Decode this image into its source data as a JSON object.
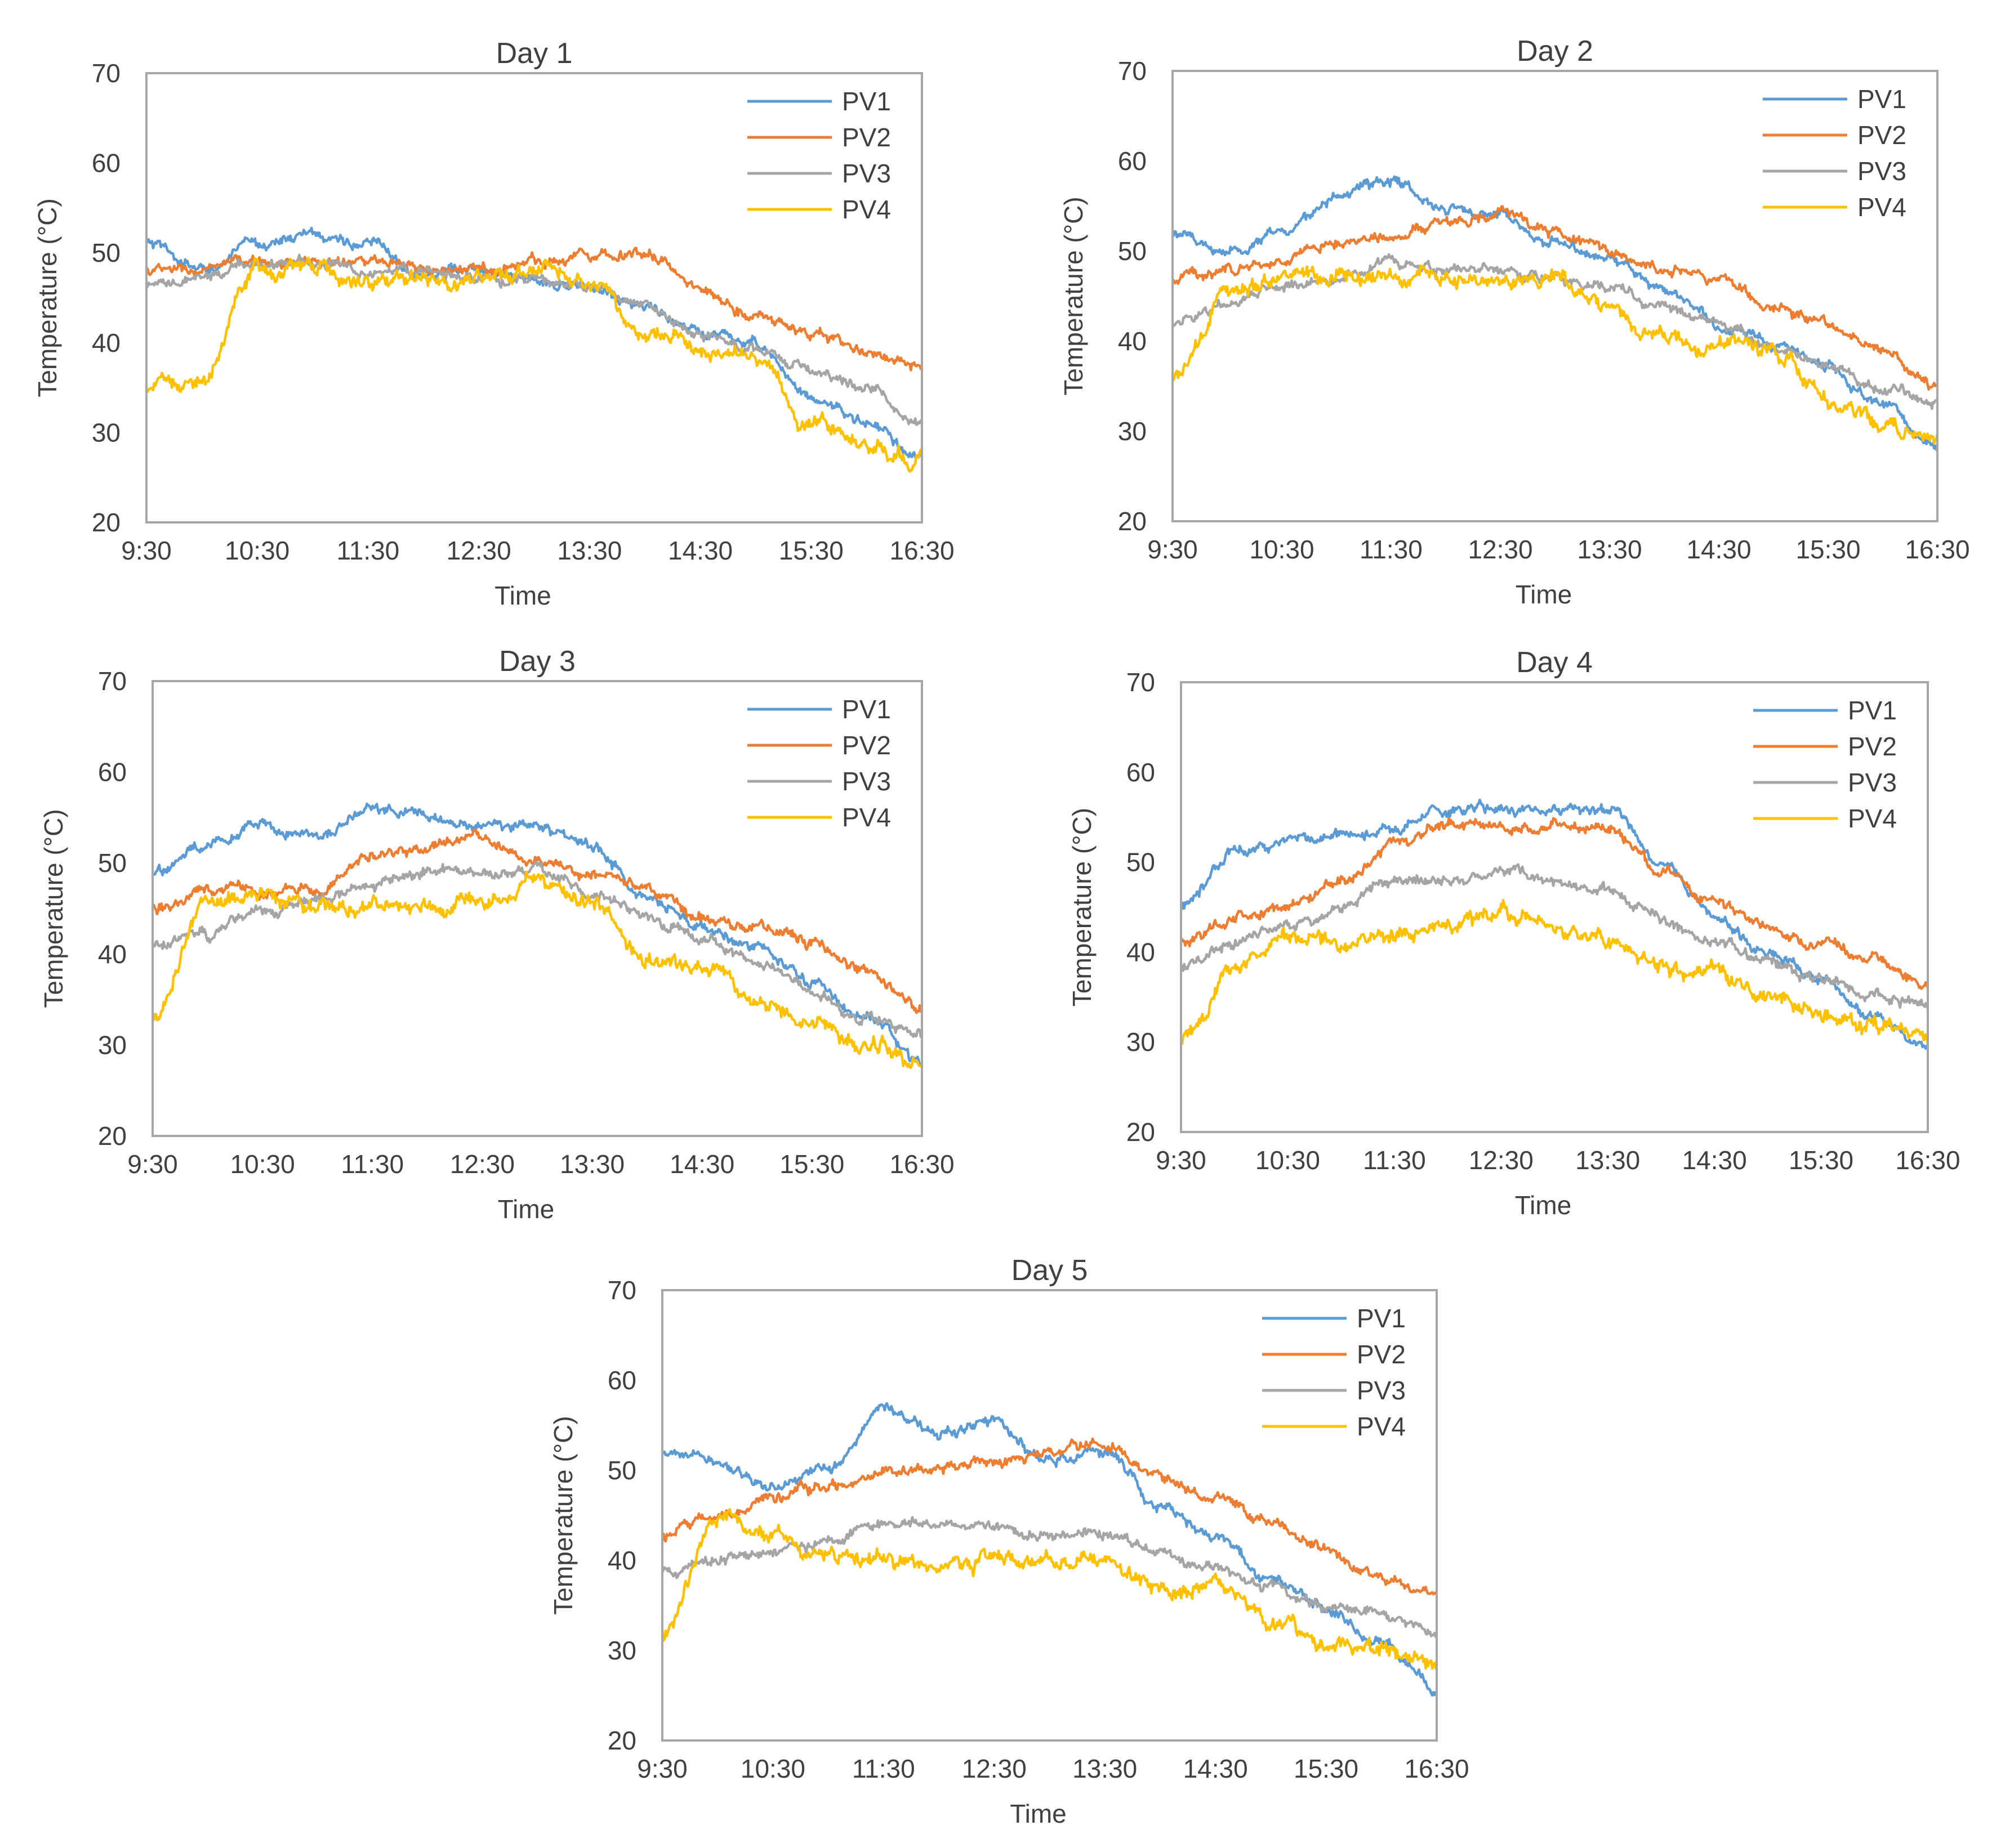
{
  "chart_data": [
    {
      "type": "line",
      "title": "Day 1",
      "xlabel": "Time",
      "ylabel": "Temperature (°C)",
      "ylim": [
        20,
        70
      ],
      "yticks": [
        "20",
        "30",
        "40",
        "50",
        "60",
        "70"
      ],
      "xticks": [
        "9:30",
        "10:30",
        "11:30",
        "12:30",
        "13:30",
        "14:30",
        "15:30",
        "16:30"
      ],
      "x": [
        "9:30",
        "10:00",
        "10:30",
        "11:00",
        "11:30",
        "12:00",
        "12:30",
        "13:00",
        "13:30",
        "14:00",
        "14:30",
        "15:00",
        "15:30",
        "16:00",
        "16:30"
      ],
      "legend": "top-right",
      "grid": false,
      "series": [
        {
          "name": "PV1",
          "color": "#5b9bd5",
          "values": [
            51,
            48,
            51,
            52,
            51,
            48,
            48,
            47,
            46,
            44,
            41,
            40,
            34,
            31,
            27
          ]
        },
        {
          "name": "PV2",
          "color": "#ed7d31",
          "values": [
            48,
            48,
            49,
            49,
            49,
            48,
            48,
            49,
            50,
            50,
            46,
            43,
            41,
            39,
            37
          ]
        },
        {
          "name": "PV3",
          "color": "#a5a5a5",
          "values": [
            46,
            47,
            49,
            49,
            48,
            48,
            47,
            47,
            46,
            44,
            41,
            39,
            37,
            35,
            31
          ]
        },
        {
          "name": "PV4",
          "color": "#ffc000",
          "values": [
            35,
            36,
            48,
            48,
            47,
            47,
            47,
            48,
            47,
            41,
            40,
            38,
            31,
            29,
            27
          ]
        }
      ]
    },
    {
      "type": "line",
      "title": "Day 2",
      "xlabel": "Time",
      "ylabel": "Temperature (°C)",
      "ylim": [
        20,
        70
      ],
      "yticks": [
        "20",
        "30",
        "40",
        "50",
        "60",
        "70"
      ],
      "xticks": [
        "9:30",
        "10:30",
        "11:30",
        "12:30",
        "13:30",
        "14:30",
        "15:30",
        "16:30"
      ],
      "x": [
        "9:30",
        "10:00",
        "10:30",
        "11:00",
        "11:30",
        "12:00",
        "12:30",
        "13:00",
        "13:30",
        "14:00",
        "14:30",
        "15:00",
        "15:30",
        "16:00",
        "16:30"
      ],
      "legend": "top-right",
      "grid": false,
      "series": [
        {
          "name": "PV1",
          "color": "#5b9bd5",
          "values": [
            52,
            50,
            52,
            56,
            58,
            55,
            54,
            51,
            49,
            46,
            42,
            40,
            37,
            33,
            28
          ]
        },
        {
          "name": "PV2",
          "color": "#ed7d31",
          "values": [
            47,
            48,
            49,
            51,
            52,
            53,
            54,
            52,
            50,
            48,
            47,
            44,
            42,
            39,
            35
          ]
        },
        {
          "name": "PV3",
          "color": "#a5a5a5",
          "values": [
            42,
            44,
            46,
            47,
            49,
            48,
            48,
            47,
            46,
            44,
            42,
            39,
            37,
            35,
            33
          ]
        },
        {
          "name": "PV4",
          "color": "#ffc000",
          "values": [
            36,
            45,
            47,
            47,
            47,
            47,
            47,
            47,
            44,
            40,
            40,
            39,
            33,
            31,
            29
          ]
        }
      ]
    },
    {
      "type": "line",
      "title": "Day 3",
      "xlabel": "Time",
      "ylabel": "Temperature (°C)",
      "ylim": [
        20,
        70
      ],
      "yticks": [
        "20",
        "30",
        "40",
        "50",
        "60",
        "70"
      ],
      "xticks": [
        "9:30",
        "10:30",
        "11:30",
        "12:30",
        "13:30",
        "14:30",
        "15:30",
        "16:30"
      ],
      "x": [
        "9:30",
        "10:00",
        "10:30",
        "11:00",
        "11:30",
        "12:00",
        "12:30",
        "13:00",
        "13:30",
        "14:00",
        "14:30",
        "15:00",
        "15:30",
        "16:00",
        "16:30"
      ],
      "legend": "top-right",
      "grid": false,
      "series": [
        {
          "name": "PV1",
          "color": "#5b9bd5",
          "values": [
            49,
            52,
            54,
            53,
            56,
            55,
            54,
            54,
            52,
            46,
            43,
            41,
            37,
            33,
            28
          ]
        },
        {
          "name": "PV2",
          "color": "#ed7d31",
          "values": [
            45,
            47,
            47,
            47,
            51,
            52,
            53,
            50,
            49,
            47,
            44,
            43,
            41,
            38,
            34
          ]
        },
        {
          "name": "PV3",
          "color": "#a5a5a5",
          "values": [
            41,
            42,
            45,
            46,
            48,
            49,
            49,
            49,
            47,
            44,
            42,
            39,
            36,
            33,
            31
          ]
        },
        {
          "name": "PV4",
          "color": "#ffc000",
          "values": [
            33,
            46,
            46,
            45,
            45,
            45,
            46,
            48,
            46,
            39,
            39,
            35,
            32,
            30,
            28
          ]
        }
      ]
    },
    {
      "type": "line",
      "title": "Day 4",
      "xlabel": "Time",
      "ylabel": "Temperature (°C)",
      "ylim": [
        20,
        70
      ],
      "yticks": [
        "20",
        "30",
        "40",
        "50",
        "60",
        "70"
      ],
      "xticks": [
        "9:30",
        "10:30",
        "11:30",
        "12:30",
        "13:30",
        "14:30",
        "15:30",
        "16:30"
      ],
      "x": [
        "9:30",
        "10:00",
        "10:30",
        "11:00",
        "11:30",
        "12:00",
        "12:30",
        "13:00",
        "13:30",
        "14:00",
        "14:30",
        "15:00",
        "15:30",
        "16:00",
        "16:30"
      ],
      "legend": "top-right",
      "grid": false,
      "series": [
        {
          "name": "PV1",
          "color": "#5b9bd5",
          "values": [
            45,
            51,
            52,
            53,
            54,
            56,
            56,
            56,
            56,
            50,
            44,
            40,
            37,
            33,
            29
          ]
        },
        {
          "name": "PV2",
          "color": "#ed7d31",
          "values": [
            41,
            44,
            45,
            48,
            52,
            54,
            54,
            54,
            54,
            49,
            46,
            43,
            41,
            39,
            36
          ]
        },
        {
          "name": "PV3",
          "color": "#a5a5a5",
          "values": [
            38,
            41,
            43,
            45,
            48,
            48,
            49,
            48,
            47,
            44,
            41,
            39,
            37,
            35,
            34
          ]
        },
        {
          "name": "PV4",
          "color": "#ffc000",
          "values": [
            30,
            39,
            41,
            41,
            42,
            43,
            44,
            43,
            41,
            38,
            38,
            35,
            33,
            32,
            31
          ]
        }
      ]
    },
    {
      "type": "line",
      "title": "Day 5",
      "xlabel": "Time",
      "ylabel": "Temperature (°C)",
      "ylim": [
        20,
        70
      ],
      "yticks": [
        "20",
        "30",
        "40",
        "50",
        "60",
        "70"
      ],
      "xticks": [
        "9:30",
        "10:30",
        "11:30",
        "12:30",
        "13:30",
        "14:30",
        "15:30",
        "16:30"
      ],
      "x": [
        "9:30",
        "10:00",
        "10:30",
        "11:00",
        "11:30",
        "12:00",
        "12:30",
        "13:00",
        "13:30",
        "14:00",
        "14:30",
        "15:00",
        "15:30",
        "16:00",
        "16:30"
      ],
      "legend": "top-right",
      "grid": false,
      "series": [
        {
          "name": "PV1",
          "color": "#5b9bd5",
          "values": [
            52,
            51,
            48,
            50,
            57,
            54,
            55,
            51,
            52,
            46,
            43,
            38,
            35,
            31,
            26
          ]
        },
        {
          "name": "PV2",
          "color": "#ed7d31",
          "values": [
            43,
            45,
            47,
            48,
            50,
            50,
            51,
            52,
            53,
            49,
            47,
            44,
            41,
            38,
            36
          ]
        },
        {
          "name": "PV3",
          "color": "#a5a5a5",
          "values": [
            39,
            40,
            41,
            42,
            44,
            44,
            44,
            43,
            43,
            41,
            39,
            37,
            35,
            34,
            32
          ]
        },
        {
          "name": "PV4",
          "color": "#ffc000",
          "values": [
            32,
            45,
            43,
            41,
            40,
            39,
            40,
            40,
            40,
            37,
            37,
            33,
            31,
            30,
            29
          ]
        }
      ]
    }
  ]
}
